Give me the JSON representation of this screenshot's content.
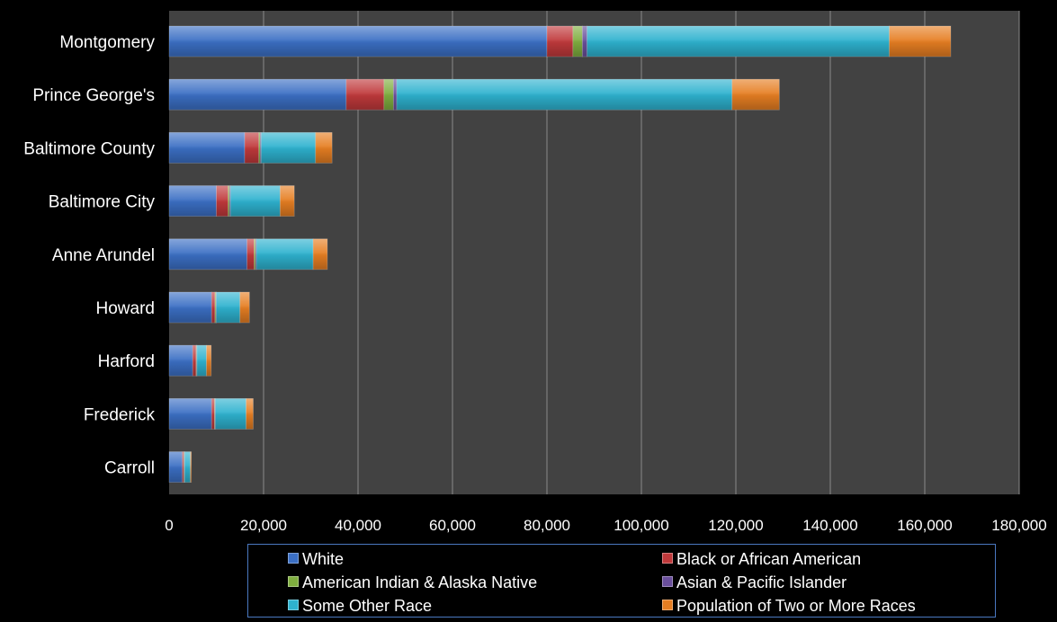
{
  "chart_data": {
    "type": "bar",
    "orientation": "horizontal",
    "stacked": true,
    "categories": [
      "Montgomery",
      "Prince George's",
      "Baltimore County",
      "Baltimore City",
      "Anne Arundel",
      "Howard",
      "Harford",
      "Frederick",
      "Carroll"
    ],
    "series": [
      {
        "name": "White",
        "color": "#3b6fc4",
        "values": [
          80000,
          37500,
          16000,
          10000,
          16500,
          9000,
          5000,
          9000,
          2800
        ]
      },
      {
        "name": "Black or African American",
        "color": "#c0393b",
        "values": [
          5500,
          8000,
          3000,
          2500,
          1500,
          700,
          700,
          600,
          300
        ]
      },
      {
        "name": "American Indian & Alaska Native",
        "color": "#7fae3f",
        "values": [
          2000,
          2000,
          300,
          300,
          300,
          200,
          100,
          100,
          100
        ]
      },
      {
        "name": "Asian & Pacific Islander",
        "color": "#6a4f9c",
        "values": [
          1000,
          700,
          200,
          200,
          200,
          100,
          100,
          100,
          100
        ]
      },
      {
        "name": "Some Other Race",
        "color": "#2eb2cf",
        "values": [
          64000,
          71000,
          11500,
          10500,
          12000,
          5000,
          2000,
          6500,
          1200
        ]
      },
      {
        "name": "Population of Two or More Races",
        "color": "#e67e22",
        "values": [
          13000,
          10000,
          3500,
          3000,
          3000,
          2000,
          1000,
          1500,
          200
        ]
      }
    ],
    "xlim": [
      0,
      180000
    ],
    "xticks": [
      "0",
      "20,000",
      "40,000",
      "60,000",
      "80,000",
      "100,000",
      "120,000",
      "140,000",
      "160,000",
      "180,000"
    ],
    "grid": "vertical",
    "legend_position": "bottom"
  }
}
